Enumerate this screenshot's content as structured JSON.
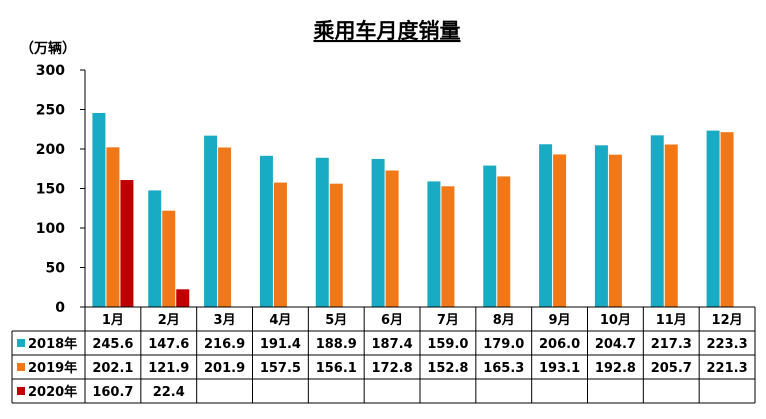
{
  "chart_data": {
    "type": "bar",
    "title": "乘用车月度销量",
    "unit_label": "（万辆）",
    "categories": [
      "1月",
      "2月",
      "3月",
      "4月",
      "5月",
      "6月",
      "7月",
      "8月",
      "9月",
      "10月",
      "11月",
      "12月"
    ],
    "ylim": [
      0,
      300
    ],
    "yticks": [
      0,
      50,
      100,
      150,
      200,
      250,
      300
    ],
    "grid": false,
    "legend_position": "bottom-table",
    "series": [
      {
        "name": "2018年",
        "color": "#1aabc4",
        "values": [
          245.6,
          147.6,
          216.9,
          191.4,
          188.9,
          187.4,
          159.0,
          179.0,
          206.0,
          204.7,
          217.3,
          223.3
        ],
        "labels": [
          "245.6",
          "147.6",
          "216.9",
          "191.4",
          "188.9",
          "187.4",
          "159.0",
          "179.0",
          "206.0",
          "204.7",
          "217.3",
          "223.3"
        ]
      },
      {
        "name": "2019年",
        "color": "#f07818",
        "values": [
          202.1,
          121.9,
          201.9,
          157.5,
          156.1,
          172.8,
          152.8,
          165.3,
          193.1,
          192.8,
          205.7,
          221.3
        ],
        "labels": [
          "202.1",
          "121.9",
          "201.9",
          "157.5",
          "156.1",
          "172.8",
          "152.8",
          "165.3",
          "193.1",
          "192.8",
          "205.7",
          "221.3"
        ]
      },
      {
        "name": "2020年",
        "color": "#c00000",
        "values": [
          160.7,
          22.4,
          null,
          null,
          null,
          null,
          null,
          null,
          null,
          null,
          null,
          null
        ],
        "labels": [
          "160.7",
          "22.4",
          "",
          "",
          "",
          "",
          "",
          "",
          "",
          "",
          "",
          ""
        ]
      }
    ]
  }
}
